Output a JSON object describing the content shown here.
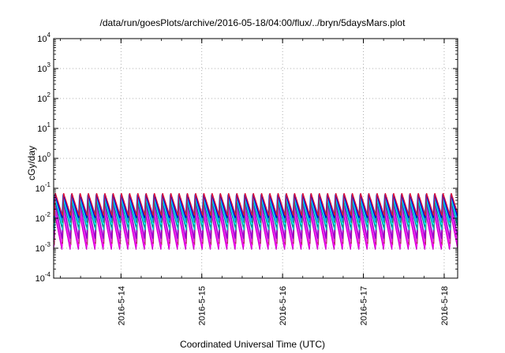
{
  "chart_data": {
    "type": "line",
    "title": "/data/run/goesPlots/archive/2016-05-18/04:00/flux/../bryn/5daysMars.plot",
    "xlabel": "Coordinated Universal Time (UTC)",
    "ylabel": "cGy/day",
    "y_scale": "log",
    "ylim": [
      0.0001,
      10000
    ],
    "y_ticks": [
      {
        "base": "10",
        "exp": "-4",
        "value": 0.0001
      },
      {
        "base": "10",
        "exp": "-3",
        "value": 0.001
      },
      {
        "base": "10",
        "exp": "-2",
        "value": 0.01
      },
      {
        "base": "10",
        "exp": "-1",
        "value": 0.1
      },
      {
        "base": "10",
        "exp": "0",
        "value": 1
      },
      {
        "base": "10",
        "exp": "1",
        "value": 10
      },
      {
        "base": "10",
        "exp": "2",
        "value": 100
      },
      {
        "base": "10",
        "exp": "3",
        "value": 1000
      },
      {
        "base": "10",
        "exp": "4",
        "value": 10000
      }
    ],
    "xlim": [
      "2016-05-13T04:00",
      "2016-05-18T04:00"
    ],
    "x_ticks": [
      "2016-5-14",
      "2016-5-15",
      "2016-5-16",
      "2016-5-17",
      "2016-5-18"
    ],
    "grid": true,
    "pattern": {
      "description_only_for_rendering": false,
      "period_hours": 2.45,
      "phase_start": "2016-05-13T04:00"
    },
    "series": [
      {
        "color": "#cc00cc",
        "peak": 0.015,
        "trough": 0.0009
      },
      {
        "color": "#ff00ff",
        "peak": 0.02,
        "trough": 0.0011
      },
      {
        "color": "#b03060",
        "peak": 0.025,
        "trough": 0.0013
      },
      {
        "color": "#e040e0",
        "peak": 0.03,
        "trough": 0.0016
      },
      {
        "color": "#9400d3",
        "peak": 0.035,
        "trough": 0.002
      },
      {
        "color": "#00cdcd",
        "peak": 0.04,
        "trough": 0.004
      },
      {
        "color": "#008b8b",
        "peak": 0.045,
        "trough": 0.005
      },
      {
        "color": "#00ffff",
        "peak": 0.05,
        "trough": 0.006
      },
      {
        "color": "#2e8b57",
        "peak": 0.055,
        "trough": 0.007
      },
      {
        "color": "#1e90ff",
        "peak": 0.06,
        "trough": 0.008
      },
      {
        "color": "#0000cd",
        "peak": 0.065,
        "trough": 0.01
      },
      {
        "color": "#dc143c",
        "peak": 0.07,
        "trough": 0.012
      }
    ]
  }
}
